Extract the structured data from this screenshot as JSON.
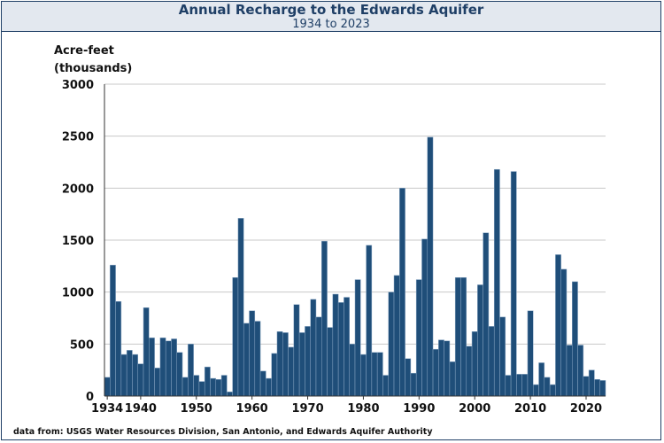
{
  "chart_data": {
    "type": "bar",
    "title": "Annual Recharge to the Edwards Aquifer",
    "subtitle": "1934 to 2023",
    "ylabel_line1": "Acre-feet",
    "ylabel_line2": "(thousands)",
    "xlabel": "",
    "source": "data from:  USGS Water Resources Division, San Antonio, and Edwards Aquifer Authority",
    "ylim": [
      0,
      3000
    ],
    "yticks": [
      0,
      500,
      1000,
      1500,
      2000,
      2500,
      3000
    ],
    "xticks": [
      1934,
      1940,
      1950,
      1960,
      1970,
      1980,
      1990,
      2000,
      2010,
      2020
    ],
    "grid": true,
    "bar_color": "#1f4e79",
    "years": [
      1934,
      1935,
      1936,
      1937,
      1938,
      1939,
      1940,
      1941,
      1942,
      1943,
      1944,
      1945,
      1946,
      1947,
      1948,
      1949,
      1950,
      1951,
      1952,
      1953,
      1954,
      1955,
      1956,
      1957,
      1958,
      1959,
      1960,
      1961,
      1962,
      1963,
      1964,
      1965,
      1966,
      1967,
      1968,
      1969,
      1970,
      1971,
      1972,
      1973,
      1974,
      1975,
      1976,
      1977,
      1978,
      1979,
      1980,
      1981,
      1982,
      1983,
      1984,
      1985,
      1986,
      1987,
      1988,
      1989,
      1990,
      1991,
      1992,
      1993,
      1994,
      1995,
      1996,
      1997,
      1998,
      1999,
      2000,
      2001,
      2002,
      2003,
      2004,
      2005,
      2006,
      2007,
      2008,
      2009,
      2010,
      2011,
      2012,
      2013,
      2014,
      2015,
      2016,
      2017,
      2018,
      2019,
      2020,
      2021,
      2022,
      2023
    ],
    "values": [
      180,
      1260,
      910,
      400,
      440,
      400,
      310,
      850,
      560,
      270,
      560,
      530,
      550,
      420,
      180,
      500,
      200,
      140,
      280,
      170,
      160,
      200,
      40,
      1140,
      1710,
      700,
      820,
      720,
      240,
      170,
      410,
      620,
      610,
      470,
      880,
      610,
      670,
      930,
      760,
      1490,
      660,
      980,
      900,
      950,
      500,
      1120,
      400,
      1450,
      420,
      420,
      200,
      1000,
      1160,
      2000,
      360,
      220,
      1120,
      1510,
      2490,
      450,
      540,
      530,
      330,
      1140,
      1140,
      480,
      620,
      1070,
      1570,
      670,
      2180,
      760,
      200,
      2160,
      210,
      210,
      820,
      110,
      320,
      180,
      110,
      1360,
      1220,
      490,
      1100,
      490,
      190,
      250,
      160,
      150
    ]
  }
}
